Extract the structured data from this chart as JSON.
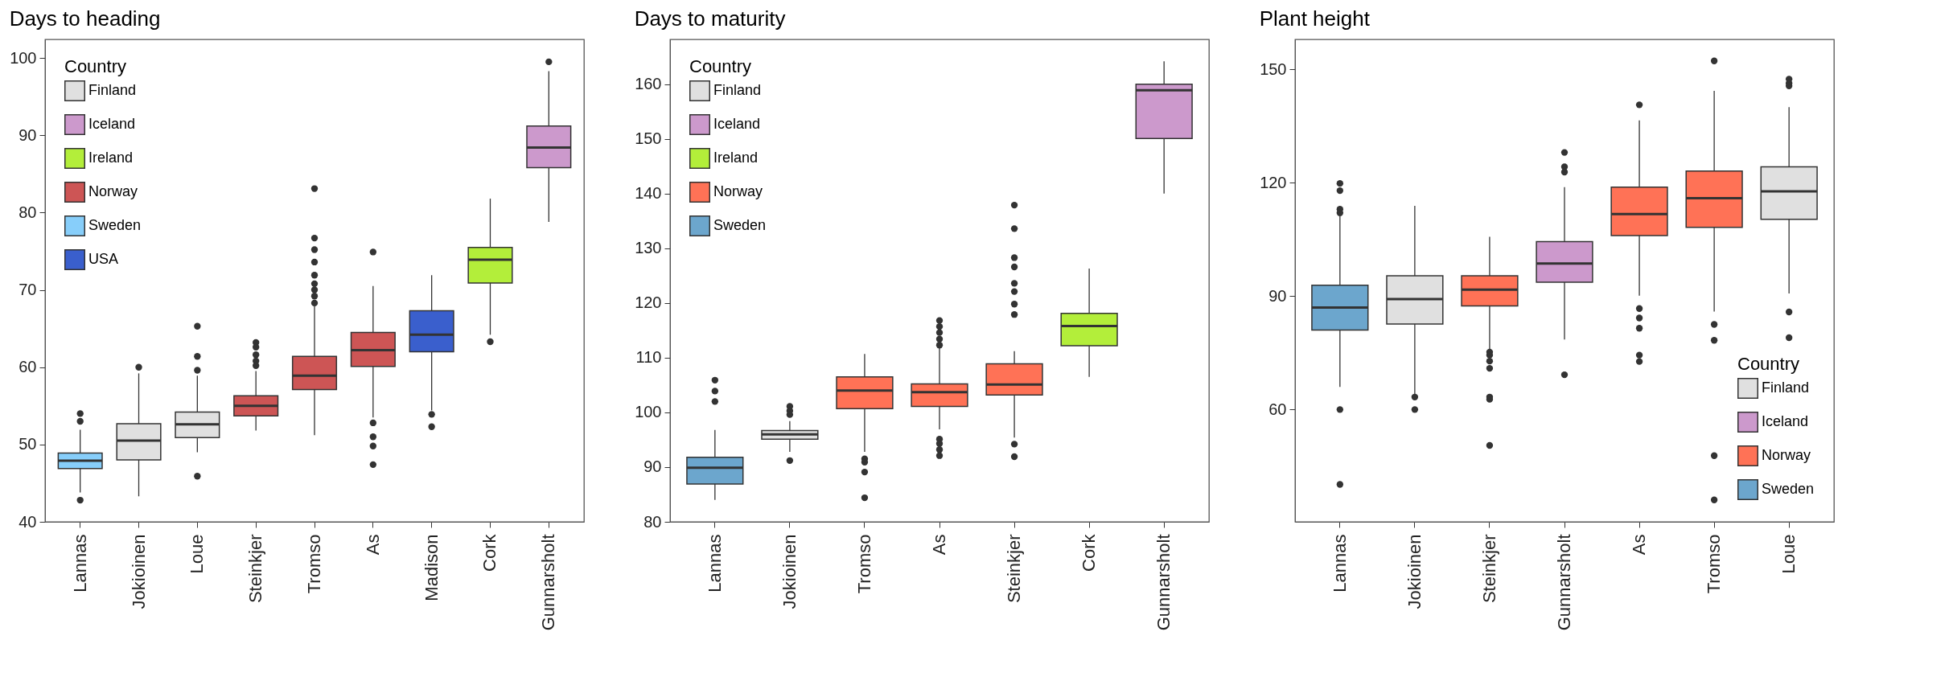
{
  "chart_data": [
    {
      "type": "box",
      "title": "Days to heading",
      "legend_title": "Country",
      "legend": "top left",
      "grid": false,
      "categories": [
        "Lannas",
        "Jokioinen",
        "Loue",
        "Steinkjer",
        "Tromso",
        "As",
        "Madison",
        "Cork",
        "Gunnarsholt"
      ],
      "ylim": [
        40,
        102.4
      ],
      "yticks": [
        40,
        50,
        60,
        70,
        80,
        90,
        100
      ],
      "series": [
        {
          "name": "Finland",
          "color": "#e0e0e0",
          "boxes": [
            null,
            {
              "low": 43.3,
              "q1": 48.0,
              "median": 50.5,
              "q3": 52.7,
              "high": 59.2,
              "outliers": [
                60.0
              ]
            },
            {
              "low": 49.0,
              "q1": 50.9,
              "median": 52.6,
              "q3": 54.2,
              "high": 58.9,
              "outliers": [
                65.3,
                61.4,
                59.6,
                45.9
              ]
            },
            null,
            null,
            null,
            null,
            null,
            null
          ]
        },
        {
          "name": "Iceland",
          "color": "#cc99cc",
          "boxes": [
            null,
            null,
            null,
            null,
            null,
            null,
            null,
            null,
            {
              "low": 78.8,
              "q1": 85.8,
              "median": 88.4,
              "q3": 91.2,
              "high": 98.3,
              "outliers": [
                99.5
              ]
            }
          ]
        },
        {
          "name": "Ireland",
          "color": "#b3ee3a",
          "boxes": [
            null,
            null,
            null,
            null,
            null,
            null,
            null,
            {
              "low": 64.2,
              "q1": 70.9,
              "median": 73.9,
              "q3": 75.5,
              "high": 81.8,
              "outliers": [
                63.3
              ]
            },
            null
          ]
        },
        {
          "name": "Norway",
          "color": "#cd5555",
          "boxes": [
            null,
            null,
            null,
            {
              "low": 51.8,
              "q1": 53.7,
              "median": 55.0,
              "q3": 56.3,
              "high": 59.5,
              "outliers": [
                63.2,
                62.6,
                61.6,
                60.8,
                60.2
              ]
            },
            {
              "low": 51.2,
              "q1": 57.1,
              "median": 58.9,
              "q3": 61.4,
              "high": 67.9,
              "outliers": [
                83.1,
                76.7,
                75.2,
                73.6,
                71.9,
                70.8,
                70.0,
                69.2,
                68.3
              ]
            },
            {
              "low": 53.5,
              "q1": 60.1,
              "median": 62.2,
              "q3": 64.5,
              "high": 70.5,
              "outliers": [
                74.9,
                52.8,
                51.0,
                49.8,
                47.4
              ]
            },
            null,
            null,
            null
          ]
        },
        {
          "name": "Sweden",
          "color": "#87cefa",
          "boxes": [
            {
              "low": 43.8,
              "q1": 46.9,
              "median": 47.9,
              "q3": 48.9,
              "high": 51.9,
              "outliers": [
                54.0,
                53.0,
                42.8
              ]
            },
            null,
            null,
            null,
            null,
            null,
            null,
            null,
            null
          ]
        },
        {
          "name": "USA",
          "color": "#3a5fcd",
          "boxes": [
            null,
            null,
            null,
            null,
            null,
            null,
            {
              "low": 54.4,
              "q1": 62.0,
              "median": 64.2,
              "q3": 67.3,
              "high": 71.9,
              "outliers": [
                53.9,
                52.3
              ]
            },
            null,
            null
          ]
        }
      ]
    },
    {
      "type": "box",
      "title": "Days to maturity",
      "legend_title": "Country",
      "legend": "top left",
      "grid": false,
      "categories": [
        "Lannas",
        "Jokioinen",
        "Tromso",
        "As",
        "Steinkjer",
        "Cork",
        "Gunnarsholt"
      ],
      "ylim": [
        80,
        168.2
      ],
      "yticks": [
        80,
        90,
        100,
        110,
        120,
        130,
        140,
        150,
        160
      ],
      "series": [
        {
          "name": "Finland",
          "color": "#e0e0e0",
          "boxes": [
            null,
            {
              "low": 92.8,
              "q1": 95.1,
              "median": 96.0,
              "q3": 96.7,
              "high": 98.4,
              "outliers": [
                101.1,
                100.3,
                99.6,
                91.2
              ]
            },
            null,
            null,
            null,
            null,
            null
          ]
        },
        {
          "name": "Iceland",
          "color": "#cc99cc",
          "boxes": [
            null,
            null,
            null,
            null,
            null,
            null,
            {
              "low": 140.0,
              "q1": 150.1,
              "median": 158.9,
              "q3": 160.0,
              "high": 164.2
            }
          ]
        },
        {
          "name": "Ireland",
          "color": "#b3ee3a",
          "boxes": [
            null,
            null,
            null,
            null,
            null,
            {
              "low": 106.5,
              "q1": 112.2,
              "median": 115.8,
              "q3": 118.1,
              "high": 126.3
            },
            null
          ]
        },
        {
          "name": "Norway",
          "color": "#ff7256",
          "boxes": [
            null,
            null,
            {
              "low": 92.8,
              "q1": 100.7,
              "median": 104.0,
              "q3": 106.5,
              "high": 110.7,
              "outliers": [
                91.5,
                90.9,
                89.1,
                84.4
              ]
            },
            {
              "low": 96.9,
              "q1": 101.1,
              "median": 103.7,
              "q3": 105.2,
              "high": 111.9,
              "outliers": [
                116.8,
                115.7,
                114.6,
                113.4,
                112.3,
                95.1,
                94.3,
                93.2,
                92.1
              ]
            },
            {
              "low": 95.4,
              "q1": 103.2,
              "median": 105.1,
              "q3": 108.9,
              "high": 111.2,
              "outliers": [
                137.9,
                133.6,
                128.3,
                126.6,
                123.6,
                122.1,
                119.8,
                117.9,
                94.2,
                91.9
              ]
            },
            null,
            null
          ]
        },
        {
          "name": "Sweden",
          "color": "#6ca6cd",
          "boxes": [
            {
              "low": 84.0,
              "q1": 86.9,
              "median": 89.9,
              "q3": 91.8,
              "high": 96.8,
              "outliers": [
                105.9,
                103.9,
                102.0
              ]
            },
            null,
            null,
            null,
            null,
            null,
            null
          ]
        }
      ]
    },
    {
      "type": "box",
      "title": "Plant height",
      "legend_title": "Country",
      "legend": "bottom right",
      "grid": false,
      "categories": [
        "Lannas",
        "Jokioinen",
        "Steinkjer",
        "Gunnarsholt",
        "As",
        "Tromso",
        "Loue"
      ],
      "ylim": [
        30.3,
        157.9
      ],
      "yticks": [
        60,
        90,
        120,
        150
      ],
      "series": [
        {
          "name": "Finland",
          "color": "#e0e0e0",
          "boxes": [
            null,
            {
              "low": 63.8,
              "q1": 82.6,
              "median": 89.2,
              "q3": 95.4,
              "high": 113.9,
              "outliers": [
                63.3,
                60.0
              ]
            },
            null,
            null,
            null,
            null,
            {
              "low": 90.7,
              "q1": 110.3,
              "median": 117.7,
              "q3": 124.2,
              "high": 140.0,
              "outliers": [
                147.4,
                146.3,
                145.6,
                85.8,
                79.0
              ]
            }
          ]
        },
        {
          "name": "Iceland",
          "color": "#cc99cc",
          "boxes": [
            null,
            null,
            null,
            {
              "low": 78.5,
              "q1": 93.7,
              "median": 98.6,
              "q3": 104.4,
              "high": 118.8,
              "outliers": [
                128.0,
                124.2,
                122.8,
                69.2
              ]
            },
            null,
            null,
            null
          ]
        },
        {
          "name": "Norway",
          "color": "#ff7256",
          "boxes": [
            null,
            null,
            {
              "low": 75.8,
              "q1": 87.4,
              "median": 91.7,
              "q3": 95.4,
              "high": 105.7,
              "outliers": [
                75.2,
                74.4,
                72.8,
                70.9,
                63.3,
                62.7,
                50.5
              ]
            },
            null,
            {
              "low": 90.1,
              "q1": 106.0,
              "median": 111.7,
              "q3": 118.8,
              "high": 136.5,
              "outliers": [
                140.6,
                86.7,
                84.2,
                81.5,
                74.4,
                72.7
              ]
            },
            {
              "low": 85.9,
              "q1": 108.2,
              "median": 115.9,
              "q3": 123.1,
              "high": 144.3,
              "outliers": [
                152.2,
                82.5,
                78.3,
                47.8,
                36.1
              ]
            },
            null
          ]
        },
        {
          "name": "Sweden",
          "color": "#6ca6cd",
          "boxes": [
            {
              "low": 66.0,
              "q1": 81.0,
              "median": 87.0,
              "q3": 92.9,
              "high": 111.1,
              "outliers": [
                119.8,
                117.9,
                113.0,
                112.0,
                60.0,
                40.2
              ]
            },
            null,
            null,
            null,
            null,
            null,
            null
          ]
        }
      ]
    }
  ]
}
